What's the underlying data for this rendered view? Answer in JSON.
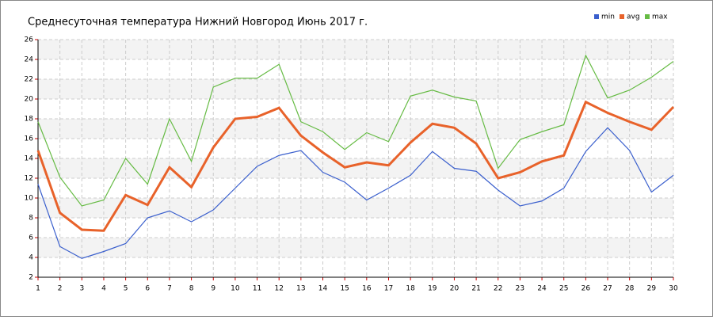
{
  "chart_data": {
    "type": "line",
    "title": "Среднесуточная температура Нижний Новгород  Июнь 2017 г.",
    "x": [
      1,
      2,
      3,
      4,
      5,
      6,
      7,
      8,
      9,
      10,
      11,
      12,
      13,
      14,
      15,
      16,
      17,
      18,
      19,
      20,
      21,
      22,
      23,
      24,
      25,
      26,
      27,
      28,
      29,
      30
    ],
    "series": [
      {
        "name": "min",
        "color": "#3a5fcd",
        "values": [
          11.4,
          5.1,
          3.9,
          4.6,
          5.4,
          8.0,
          8.7,
          7.6,
          8.8,
          11.0,
          13.2,
          14.3,
          14.8,
          12.6,
          11.6,
          9.8,
          11.0,
          12.3,
          14.7,
          13.0,
          12.7,
          10.8,
          9.2,
          9.7,
          11.0,
          14.7,
          17.1,
          14.8,
          10.6,
          12.3
        ]
      },
      {
        "name": "avg",
        "color": "#e8622a",
        "values": [
          14.8,
          8.5,
          6.8,
          6.7,
          10.3,
          9.3,
          13.1,
          11.1,
          15.1,
          18.0,
          18.2,
          19.1,
          16.3,
          14.6,
          13.1,
          13.6,
          13.3,
          15.6,
          17.5,
          17.1,
          15.5,
          12.0,
          12.6,
          13.7,
          14.3,
          19.7,
          18.6,
          17.7,
          16.9,
          19.2
        ]
      },
      {
        "name": "max",
        "color": "#66bb44",
        "values": [
          17.7,
          12.1,
          9.2,
          9.8,
          14.0,
          11.4,
          18.0,
          13.7,
          21.2,
          22.1,
          22.1,
          23.5,
          17.7,
          16.7,
          14.9,
          16.6,
          15.7,
          20.3,
          20.9,
          20.2,
          19.8,
          13.0,
          15.9,
          16.7,
          17.4,
          24.4,
          20.1,
          20.9,
          22.2,
          23.8
        ]
      }
    ],
    "xlim": [
      1,
      30
    ],
    "xticks": [
      1,
      2,
      3,
      4,
      5,
      6,
      7,
      8,
      9,
      10,
      11,
      12,
      13,
      14,
      15,
      16,
      17,
      18,
      19,
      20,
      21,
      22,
      23,
      24,
      25,
      26,
      27,
      28,
      29,
      30
    ],
    "ylim": [
      2,
      26
    ],
    "yticks": [
      2,
      4,
      6,
      8,
      10,
      12,
      14,
      16,
      18,
      20,
      22,
      24,
      26
    ],
    "grid": true,
    "legend": "top-right"
  }
}
